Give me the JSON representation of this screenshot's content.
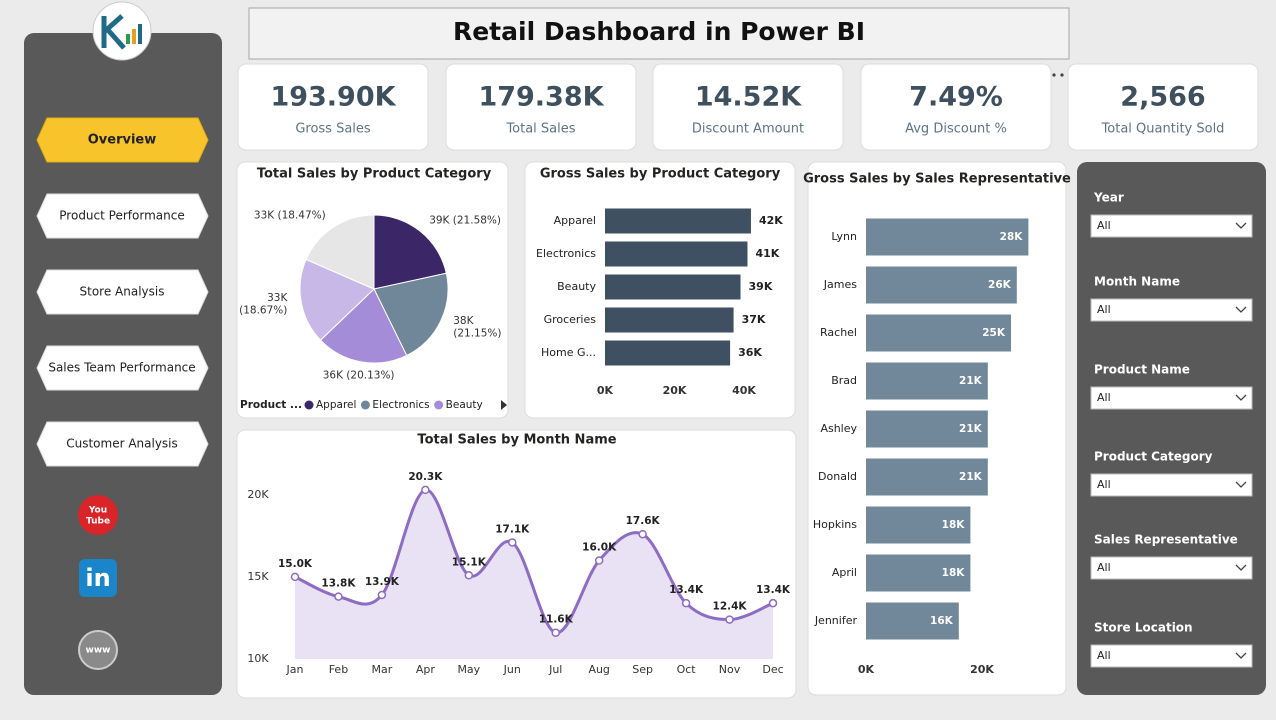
{
  "title": "Retail Dashboard in Power BI",
  "navigation": [
    "Overview",
    "Product Performance",
    "Store Analysis",
    "Sales Team Performance",
    "Customer Analysis"
  ],
  "social": [
    "You Tube",
    "in",
    "www"
  ],
  "kpis": [
    {
      "value": "193.90K",
      "label": "Gross Sales"
    },
    {
      "value": "179.38K",
      "label": "Total Sales"
    },
    {
      "value": "14.52K",
      "label": "Discount Amount"
    },
    {
      "value": "7.49%",
      "label": "Avg Discount %"
    },
    {
      "value": "2,566",
      "label": "Total Quantity Sold"
    }
  ],
  "slicers": [
    {
      "label": "Year",
      "value": "All"
    },
    {
      "label": "Month Name",
      "value": "All"
    },
    {
      "label": "Product Name",
      "value": "All"
    },
    {
      "label": "Product Category",
      "value": "All"
    },
    {
      "label": "Sales Representative",
      "value": "All"
    },
    {
      "label": "Store Location",
      "value": "All"
    }
  ],
  "chart_data": [
    {
      "type": "pie",
      "title": "Total Sales by Product Category",
      "legend_title": "Product ...",
      "categories": [
        "Apparel",
        "Electronics",
        "Beauty",
        null,
        null
      ],
      "values": [
        21.58,
        21.15,
        20.13,
        18.67,
        18.47
      ],
      "value_labels": [
        "39K (21.58%)",
        "38K (21.15%)",
        "36K (20.13%)",
        "33K (18.67%)",
        "33K (18.47%)"
      ],
      "colors": [
        "#3b2667",
        "#6f8799",
        "#a58cd9",
        "#c8b8e8",
        "#e6e6e6"
      ]
    },
    {
      "type": "bar",
      "orientation": "horizontal",
      "title": "Gross Sales by Product Category",
      "categories": [
        "Apparel",
        "Electronics",
        "Beauty",
        "Groceries",
        "Home G..."
      ],
      "values": [
        42000,
        41000,
        39000,
        37000,
        36000
      ],
      "value_labels": [
        "42K",
        "41K",
        "39K",
        "37K",
        "36K"
      ],
      "color": "#3e5062",
      "xlim": [
        0,
        40000
      ],
      "xticks": [
        {
          "value": 0,
          "label": "0K"
        },
        {
          "value": 20000,
          "label": "20K"
        },
        {
          "value": 40000,
          "label": "40K"
        }
      ],
      "grid": false
    },
    {
      "type": "bar",
      "orientation": "horizontal",
      "title": "Gross Sales by Sales Representative",
      "categories": [
        "Lynn",
        "James",
        "Rachel",
        "Brad",
        "Ashley",
        "Donald",
        "Hopkins",
        "April",
        "Jennifer"
      ],
      "values": [
        28000,
        26000,
        25000,
        21000,
        21000,
        21000,
        18000,
        18000,
        16000
      ],
      "value_labels": [
        "28K",
        "26K",
        "25K",
        "21K",
        "21K",
        "21K",
        "18K",
        "18K",
        "16K"
      ],
      "color": "#71879a",
      "xlim": [
        0,
        30000
      ],
      "xticks": [
        {
          "value": 0,
          "label": "0K"
        },
        {
          "value": 20000,
          "label": "20K"
        }
      ],
      "grid": false
    },
    {
      "type": "line",
      "title": "Total Sales by Month Name",
      "categories": [
        "Jan",
        "Feb",
        "Mar",
        "Apr",
        "May",
        "Jun",
        "Jul",
        "Aug",
        "Sep",
        "Oct",
        "Nov",
        "Dec"
      ],
      "values": [
        15000,
        13800,
        13900,
        20300,
        15100,
        17100,
        11600,
        16000,
        17600,
        13400,
        12400,
        13400
      ],
      "value_labels": [
        "15.0K",
        "13.8K",
        "13.9K",
        "20.3K",
        "15.1K",
        "17.1K",
        "11.6K",
        "16.0K",
        "17.6K",
        "13.4K",
        "12.4K",
        "13.4K"
      ],
      "color": "#8d6cc2",
      "area_color": "#e9e2f4",
      "ylim": [
        10000,
        22000
      ],
      "yticks": [
        {
          "value": 10000,
          "label": "10K"
        },
        {
          "value": 15000,
          "label": "15K"
        },
        {
          "value": 20000,
          "label": "20K"
        }
      ],
      "grid": false
    }
  ]
}
